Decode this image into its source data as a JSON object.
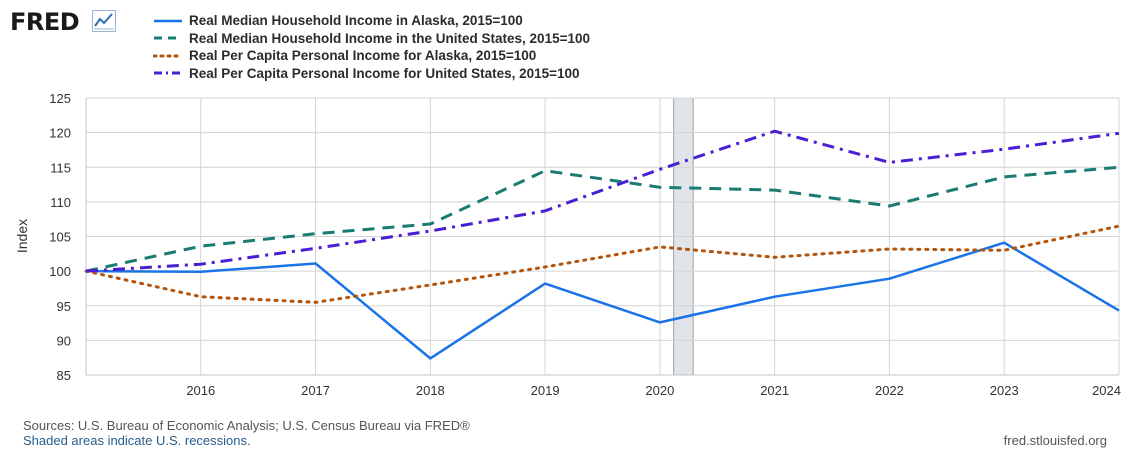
{
  "brand": {
    "logo_text": "FRED",
    "logo_icon": "line-chart-icon"
  },
  "chart_data": {
    "type": "line",
    "title": "",
    "xlabel": "",
    "ylabel": "Index",
    "xlim": [
      2015,
      2024
    ],
    "ylim": [
      85,
      125
    ],
    "x_ticks": [
      2016,
      2017,
      2018,
      2019,
      2020,
      2021,
      2022,
      2023,
      2024
    ],
    "y_ticks": [
      85,
      90,
      95,
      100,
      105,
      110,
      115,
      120,
      125
    ],
    "grid": true,
    "legend_position": "top-left",
    "recessions": [
      {
        "start": 2020.12,
        "end": 2020.29
      }
    ],
    "series": [
      {
        "name": "Real Median Household Income in Alaska, 2015=100",
        "color": "#1a73e8",
        "style": "solid",
        "x": [
          2015,
          2016,
          2017,
          2018,
          2019,
          2020,
          2021,
          2022,
          2023,
          2024
        ],
        "y": [
          100.0,
          99.9,
          101.1,
          87.4,
          98.2,
          92.6,
          96.3,
          98.9,
          104.1,
          94.3
        ]
      },
      {
        "name": "Real Median Household Income in the United States, 2015=100",
        "color": "#1a7b73",
        "style": "dashed",
        "x": [
          2015,
          2016,
          2017,
          2018,
          2019,
          2020,
          2021,
          2022,
          2023,
          2024
        ],
        "y": [
          100.0,
          103.6,
          105.4,
          106.8,
          114.5,
          112.1,
          111.7,
          109.4,
          113.6,
          115.0
        ]
      },
      {
        "name": "Real Per Capita Personal Income for Alaska, 2015=100",
        "color": "#b4530a",
        "style": "dotted",
        "x": [
          2015,
          2016,
          2017,
          2018,
          2019,
          2020,
          2021,
          2022,
          2023,
          2024
        ],
        "y": [
          100.0,
          96.3,
          95.5,
          98.0,
          100.6,
          103.5,
          102.0,
          103.2,
          103.0,
          106.5
        ]
      },
      {
        "name": "Real Per Capita Personal Income for United States, 2015=100",
        "color": "#4a1fd4",
        "style": "dashdot",
        "x": [
          2015,
          2016,
          2017,
          2018,
          2019,
          2020,
          2021,
          2022,
          2023,
          2024
        ],
        "y": [
          100.0,
          101.0,
          103.3,
          105.8,
          108.7,
          114.7,
          120.2,
          115.7,
          117.6,
          119.9
        ]
      }
    ]
  },
  "footer": {
    "source": "Sources: U.S. Bureau of Economic Analysis; U.S. Census Bureau via FRED®",
    "recession_note": "Shaded areas indicate U.S. recessions.",
    "site": "fred.stlouisfed.org"
  }
}
